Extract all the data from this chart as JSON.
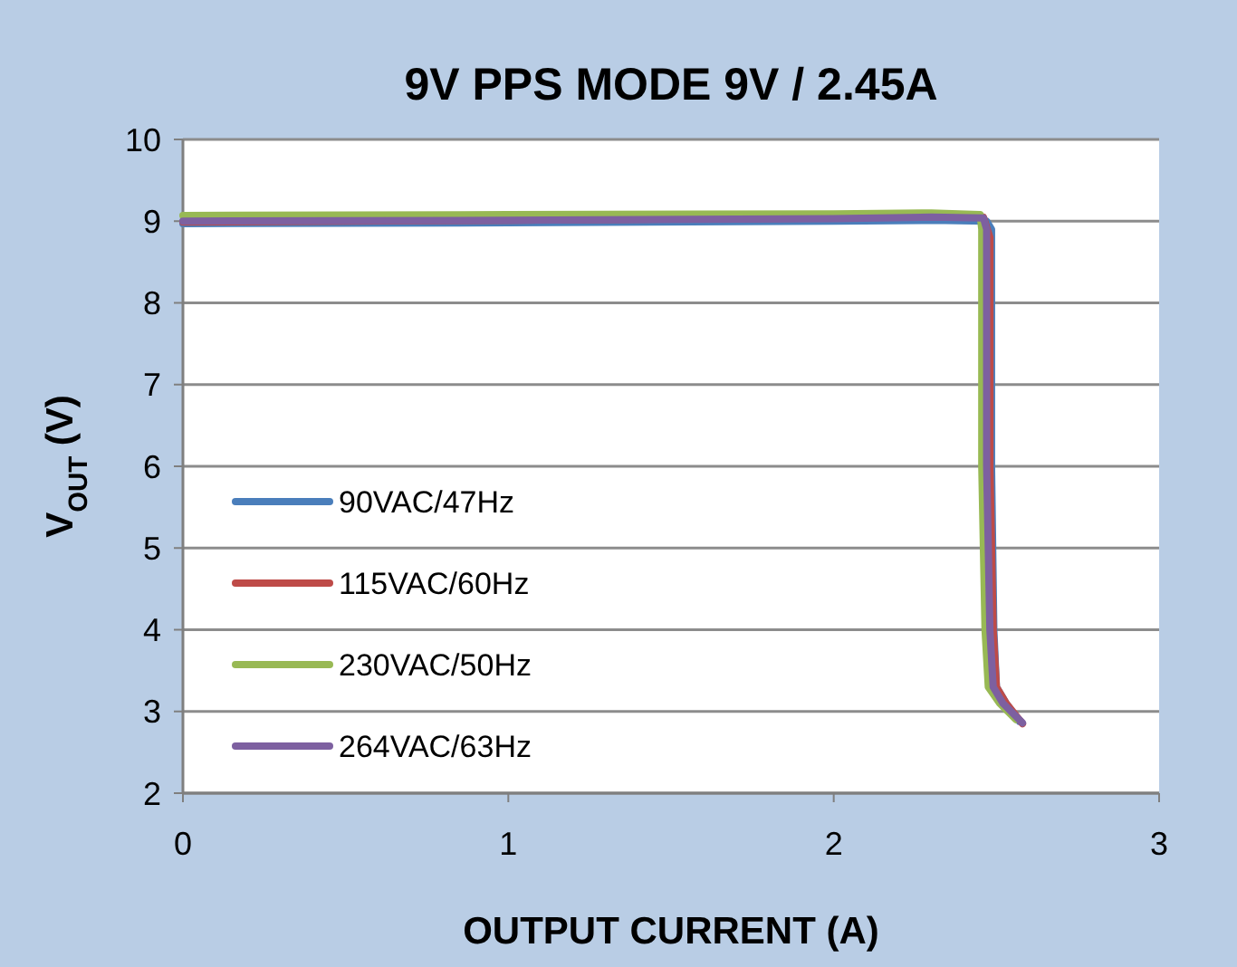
{
  "chart_data": {
    "type": "line",
    "title": "9V PPS MODE 9V / 2.45A",
    "xlabel": "OUTPUT CURRENT (A)",
    "ylabel": "V$_{OUT}$ (V)",
    "xlim": [
      0,
      3
    ],
    "xticks": [
      0,
      1,
      2,
      3
    ],
    "ylim": [
      2,
      10
    ],
    "yticks": [
      2,
      3,
      4,
      5,
      6,
      7,
      8,
      9,
      10
    ],
    "grid": "y",
    "legend": "left",
    "marker": "none",
    "line_style": "solid",
    "series": [
      {
        "name": "90VAC/47Hz",
        "color": "#4a7ebb",
        "x": [
          0,
          1,
          2,
          2.3,
          2.47,
          2.485,
          2.485,
          2.492,
          2.5,
          2.53,
          2.57
        ],
        "values": [
          8.97,
          8.98,
          9,
          9.01,
          9,
          8.9,
          6,
          4,
          3.3,
          3.1,
          2.88
        ]
      },
      {
        "name": "115VAC/60Hz",
        "color": "#be4b48",
        "x": [
          0,
          1,
          2,
          2.35,
          2.46,
          2.48,
          2.48,
          2.49,
          2.5,
          2.53,
          2.58
        ],
        "values": [
          8.99,
          9.01,
          9.04,
          9.08,
          9.05,
          8.8,
          6,
          4,
          3.3,
          3.1,
          2.85
        ]
      },
      {
        "name": "230VAC/50Hz",
        "color": "#98b954",
        "x": [
          0,
          1,
          2,
          2.3,
          2.45,
          2.455,
          2.455,
          2.465,
          2.475,
          2.51,
          2.56
        ],
        "values": [
          9.07,
          9.08,
          9.09,
          9.1,
          9.08,
          8.9,
          6,
          4,
          3.3,
          3.1,
          2.9
        ]
      },
      {
        "name": "264VAC/63Hz",
        "color": "#7d60a0",
        "x": [
          0,
          1,
          2,
          2.3,
          2.46,
          2.47,
          2.47,
          2.48,
          2.49,
          2.52,
          2.58
        ],
        "values": [
          9,
          9.01,
          9.03,
          9.05,
          9.04,
          8.9,
          6,
          4,
          3.3,
          3.1,
          2.86
        ]
      }
    ]
  }
}
